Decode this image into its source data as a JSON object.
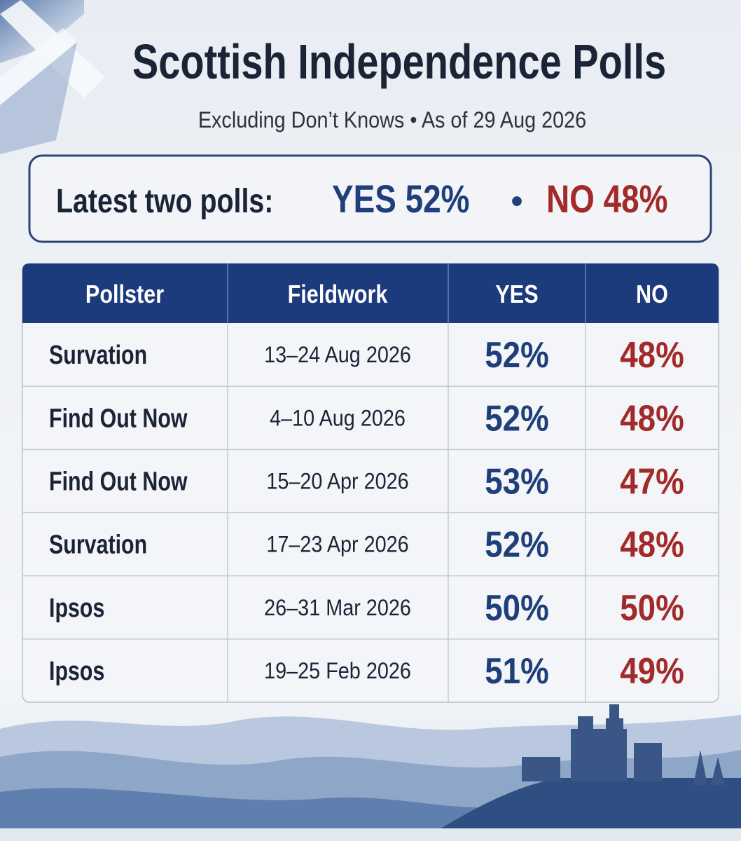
{
  "header": {
    "title": "Scottish Independence Polls",
    "subtitle": "Excluding Don’t Knows • As of 29 Aug 2026"
  },
  "summary": {
    "label": "Latest two polls:",
    "yes": "YES 52%",
    "separator": "•",
    "no": "NO 48%"
  },
  "table": {
    "headers": [
      "Pollster",
      "Fieldwork",
      "YES",
      "NO"
    ],
    "rows": [
      [
        "Survation",
        "13–24 Aug 2026",
        "52%",
        "48%"
      ],
      [
        "Find Out Now",
        "4–10 Aug 2026",
        "52%",
        "48%"
      ],
      [
        "Find Out Now",
        "15–20 Apr 2026",
        "53%",
        "47%"
      ],
      [
        "Survation",
        "17–23 Apr 2026",
        "52%",
        "48%"
      ],
      [
        "Ipsos",
        "26–31 Mar 2026",
        "50%",
        "50%"
      ],
      [
        "Ipsos",
        "19–25 Feb 2026",
        "51%",
        "49%"
      ]
    ]
  }
}
